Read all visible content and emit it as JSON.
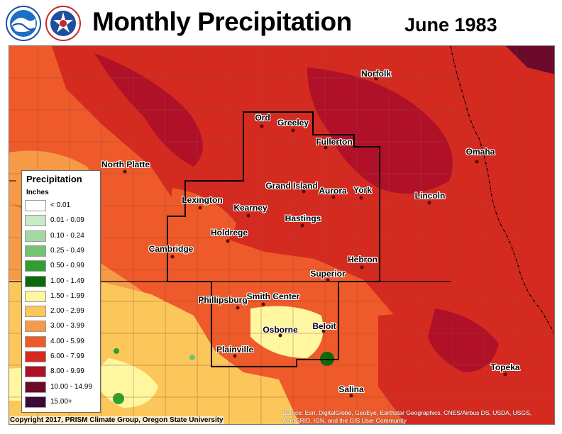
{
  "header": {
    "title": "Monthly Precipitation",
    "date": "June 1983"
  },
  "legend": {
    "title": "Precipitation",
    "units": "Inches",
    "items": [
      {
        "label": "< 0.01",
        "color": "#ffffff"
      },
      {
        "label": "0.01 - 0.09",
        "color": "#c8ebc8"
      },
      {
        "label": "0.10 - 0.24",
        "color": "#a2d9a2"
      },
      {
        "label": "0.25 - 0.49",
        "color": "#73c373"
      },
      {
        "label": "0.50 - 0.99",
        "color": "#2ea02e"
      },
      {
        "label": "1.00 - 1.49",
        "color": "#0b6b0b"
      },
      {
        "label": "1.50 - 1.99",
        "color": "#fff7a0"
      },
      {
        "label": "2.00 - 2.99",
        "color": "#fcc75a"
      },
      {
        "label": "3.00 - 3.99",
        "color": "#f79a48"
      },
      {
        "label": "4.00 - 5.99",
        "color": "#ee5a2a"
      },
      {
        "label": "6.00 - 7.99",
        "color": "#d42a20"
      },
      {
        "label": "8.00 - 9.99",
        "color": "#b01028"
      },
      {
        "label": "10.00 - 14.99",
        "color": "#6b0a2a"
      },
      {
        "label": "15.00+",
        "color": "#3a0a3a"
      }
    ]
  },
  "cities": [
    {
      "name": "Norfolk"
    },
    {
      "name": "Ord"
    },
    {
      "name": "Greeley"
    },
    {
      "name": "Fullerton"
    },
    {
      "name": "Omaha"
    },
    {
      "name": "North Platte"
    },
    {
      "name": "Grand Island"
    },
    {
      "name": "Aurora"
    },
    {
      "name": "York"
    },
    {
      "name": "Lincoln"
    },
    {
      "name": "Lexington"
    },
    {
      "name": "Kearney"
    },
    {
      "name": "Hastings"
    },
    {
      "name": "Holdrege"
    },
    {
      "name": "Cambridge"
    },
    {
      "name": "Hebron"
    },
    {
      "name": "Superior"
    },
    {
      "name": "Phillipsburg"
    },
    {
      "name": "Smith Center"
    },
    {
      "name": "Osborne"
    },
    {
      "name": "Beloit"
    },
    {
      "name": "Plainville"
    },
    {
      "name": "Topeka"
    },
    {
      "name": "Salina"
    }
  ],
  "footer": {
    "copyright": "Copyright 2017, PRISM Climate Group, Oregon State University",
    "source": "Source: Esri, DigitalGlobe, GeoEye, Earthstar Geographics, CNES/Airbus DS, USDA, USGS, AeroGRID, IGN, and the GIS User Community"
  },
  "logos": [
    {
      "name": "noaa-logo",
      "icon": "noaa-seal"
    },
    {
      "name": "nws-logo",
      "icon": "nws-seal"
    }
  ]
}
